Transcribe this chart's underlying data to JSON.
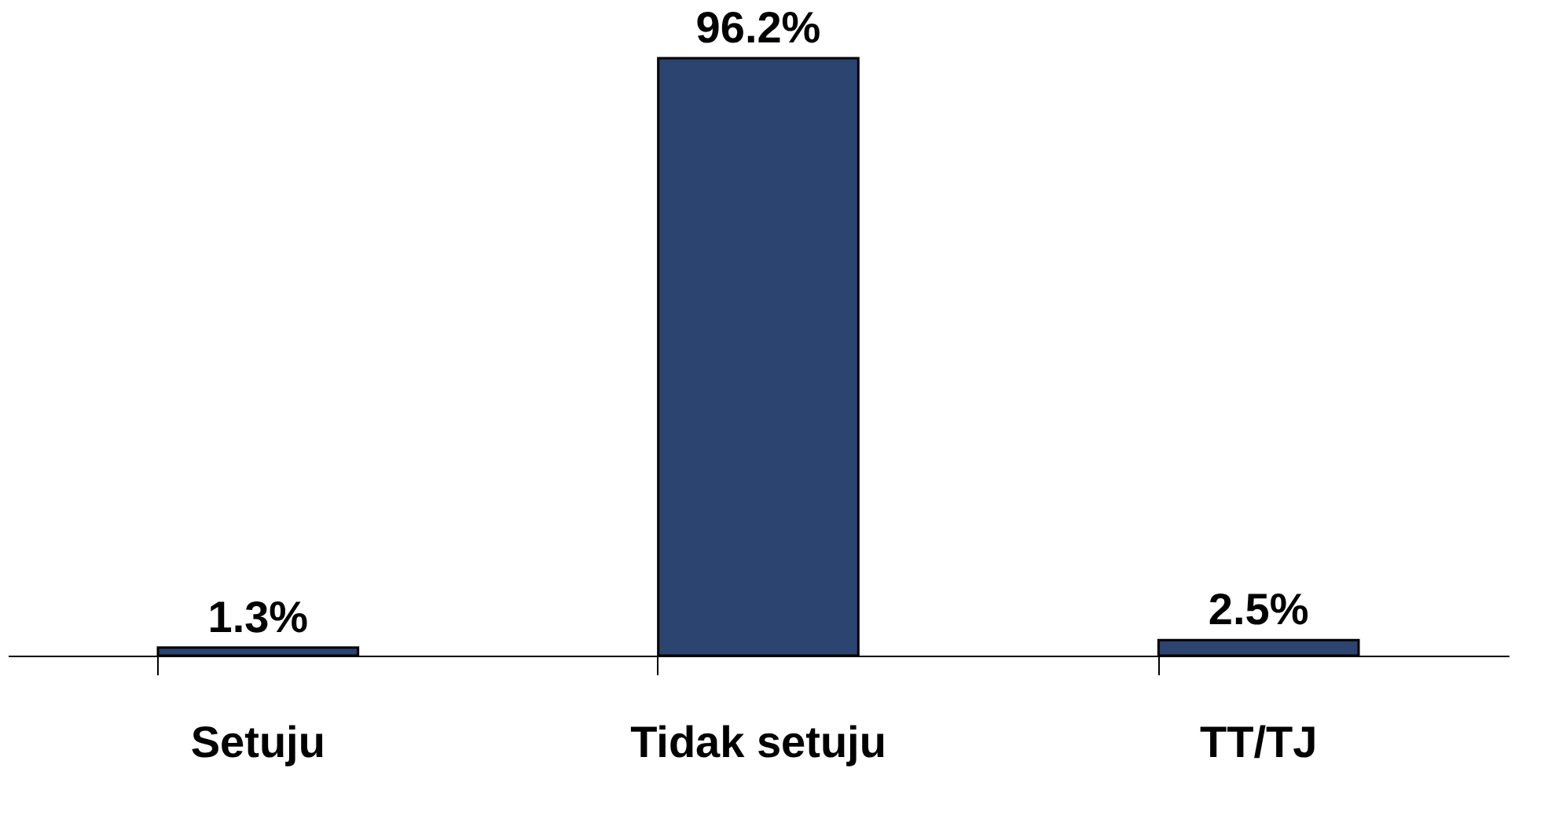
{
  "chart_data": {
    "type": "bar",
    "categories": [
      "Setuju",
      "Tidak setuju",
      "TT/TJ"
    ],
    "values": [
      1.3,
      96.2,
      2.5
    ],
    "value_labels": [
      "1.3%",
      "96.2%",
      "2.5%"
    ],
    "color": "#2b4470"
  }
}
